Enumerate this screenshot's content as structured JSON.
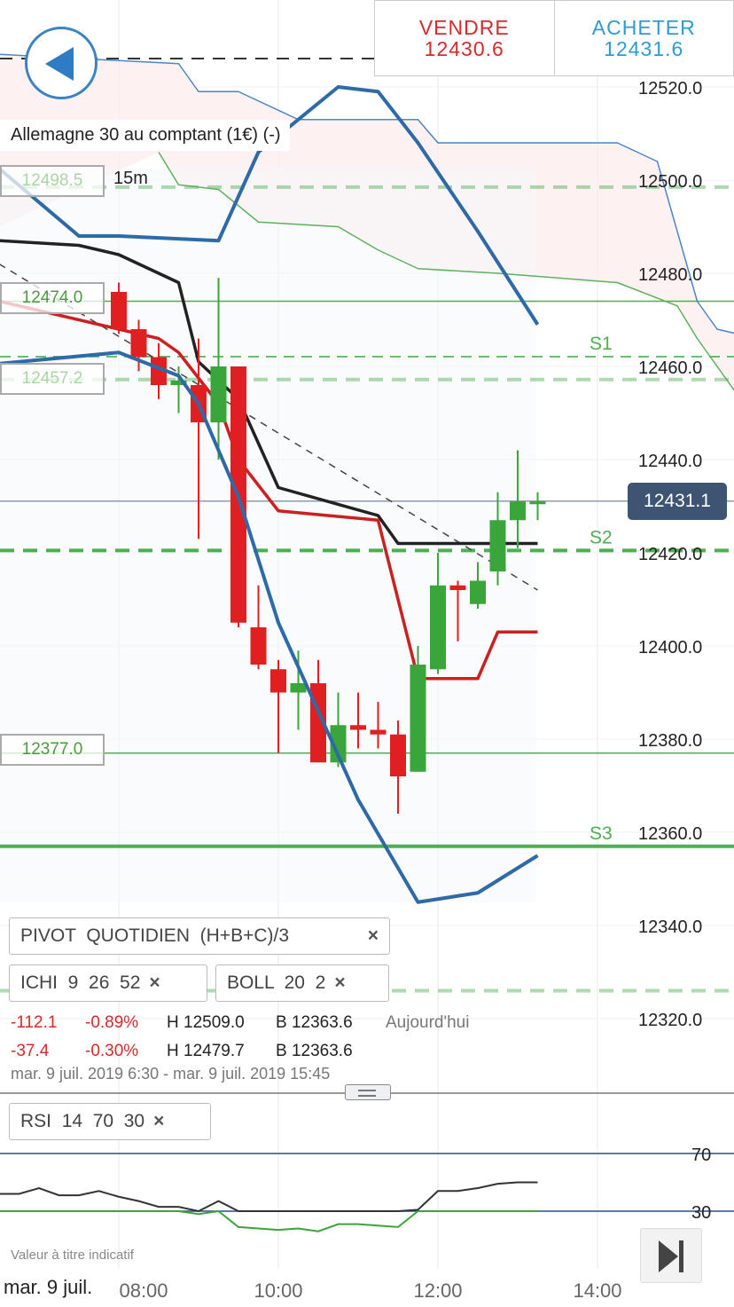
{
  "trade": {
    "sell_label": "VENDRE",
    "sell_price": "12430.6",
    "buy_label": "ACHETER",
    "buy_price": "12431.6"
  },
  "instrument": {
    "title": "Allemagne 30 au comptant (1€) (-)",
    "timeframe": "15m"
  },
  "level_labels": [
    "12498.5",
    "12474.0",
    "12457.2",
    "12377.0"
  ],
  "pivot_labels": {
    "s1": "S1",
    "s2": "S2",
    "s3": "S3"
  },
  "current_price": "12431.1",
  "indicators": {
    "pivot": {
      "name": "PIVOT",
      "params": "QUOTIDIEN  (H+B+C)/3"
    },
    "ichi": {
      "name": "ICHI",
      "params": "9  26  52"
    },
    "boll": {
      "name": "BOLL",
      "params": "20  2"
    },
    "rsi": {
      "name": "RSI",
      "params": "14  70  30"
    },
    "close_icon": "×"
  },
  "stats": {
    "today": {
      "change": "-112.1",
      "pct": "-0.89%",
      "high": "H 12509.0",
      "low": "B 12363.6",
      "label": "Aujourd'hui"
    },
    "view": {
      "change": "-37.4",
      "pct": "-0.30%",
      "high": "H 12479.7",
      "low": "B 12363.6"
    },
    "range": "mar. 9 juil. 2019 6:30 - mar. 9 juil. 2019 15:45"
  },
  "footer": {
    "note": "Valeur à titre indicatif",
    "date": "mar. 9 juil."
  },
  "colors": {
    "up": "#3aa53a",
    "down": "#e02020",
    "boll_outer": "#2e6aa8",
    "boll_mid": "#cc1f1f",
    "kijun": "#222222",
    "span_a": "#4a86c8",
    "span_b": "#5cb35c",
    "cloud": "#fdeeee",
    "pivot": "#4caf50",
    "rsi_line": "#333333",
    "rsi_oversold": "#3aa53a",
    "rsi_band": "#2a4f8a",
    "sell": "#d52b2b",
    "buy": "#2d9bd8"
  },
  "icons": {
    "back": "triangle-left-icon",
    "close": "x-icon",
    "forward": "skip-to-end-icon",
    "handle": "drag-handle-icon"
  },
  "chart_data": {
    "type": "candlestick",
    "ylim": [
      12310,
      12540
    ],
    "xlim": [
      "06:30",
      "15:45"
    ],
    "y_ticks": [
      "12320.0",
      "12340.0",
      "12360.0",
      "12380.0",
      "12400.0",
      "12420.0",
      "12440.0",
      "12460.0",
      "12480.0",
      "12500.0",
      "12520.0"
    ],
    "x_ticks": [
      "08:00",
      "10:00",
      "12:00",
      "14:00"
    ],
    "candles": [
      {
        "t": "08:00",
        "o": 12476,
        "h": 12478,
        "l": 12467,
        "c": 12468
      },
      {
        "t": "08:15",
        "o": 12468,
        "h": 12470,
        "l": 12459,
        "c": 12462
      },
      {
        "t": "08:30",
        "o": 12462,
        "h": 12465,
        "l": 12453,
        "c": 12456
      },
      {
        "t": "08:45",
        "o": 12456,
        "h": 12460,
        "l": 12450,
        "c": 12457
      },
      {
        "t": "09:00",
        "o": 12456,
        "h": 12466,
        "l": 12423,
        "c": 12448
      },
      {
        "t": "09:15",
        "o": 12448,
        "h": 12479,
        "l": 12440,
        "c": 12460
      },
      {
        "t": "09:30",
        "o": 12460,
        "h": 12460,
        "l": 12404,
        "c": 12405
      },
      {
        "t": "09:45",
        "o": 12404,
        "h": 12413,
        "l": 12395,
        "c": 12396
      },
      {
        "t": "10:00",
        "o": 12395,
        "h": 12397,
        "l": 12377,
        "c": 12390
      },
      {
        "t": "10:15",
        "o": 12390,
        "h": 12399,
        "l": 12382,
        "c": 12392
      },
      {
        "t": "10:30",
        "o": 12392,
        "h": 12397,
        "l": 12375,
        "c": 12375
      },
      {
        "t": "10:45",
        "o": 12375,
        "h": 12390,
        "l": 12374,
        "c": 12383
      },
      {
        "t": "11:00",
        "o": 12383,
        "h": 12390,
        "l": 12378,
        "c": 12382
      },
      {
        "t": "11:15",
        "o": 12382,
        "h": 12388,
        "l": 12378,
        "c": 12381
      },
      {
        "t": "11:30",
        "o": 12381,
        "h": 12384,
        "l": 12364,
        "c": 12372
      },
      {
        "t": "11:45",
        "o": 12373,
        "h": 12400,
        "l": 12373,
        "c": 12396
      },
      {
        "t": "12:00",
        "o": 12395,
        "h": 12420,
        "l": 12394,
        "c": 12413
      },
      {
        "t": "12:15",
        "o": 12413,
        "h": 12414,
        "l": 12401,
        "c": 12412
      },
      {
        "t": "12:30",
        "o": 12409,
        "h": 12418,
        "l": 12408,
        "c": 12414
      },
      {
        "t": "12:45",
        "o": 12416,
        "h": 12433,
        "l": 12413,
        "c": 12427
      },
      {
        "t": "13:00",
        "o": 12427,
        "h": 12442,
        "l": 12421,
        "c": 12431
      },
      {
        "t": "13:15",
        "o": 12431,
        "h": 12433,
        "l": 12427,
        "c": 12431
      }
    ],
    "lines": {
      "boll_upper": [
        [
          "06:30",
          12502.5
        ],
        [
          "07:30",
          12488
        ],
        [
          "08:00",
          12488
        ],
        [
          "09:15",
          12487
        ],
        [
          "09:45",
          12506
        ],
        [
          "10:45",
          12520
        ],
        [
          "11:15",
          12519
        ],
        [
          "11:45",
          12508
        ],
        [
          "12:30",
          12489
        ],
        [
          "13:15",
          12469
        ]
      ],
      "boll_mid": [
        [
          "06:30",
          12474
        ],
        [
          "08:00",
          12468
        ],
        [
          "08:30",
          12466
        ],
        [
          "08:45",
          12463
        ],
        [
          "09:15",
          12452
        ],
        [
          "09:30",
          12440
        ],
        [
          "10:00",
          12429
        ],
        [
          "11:15",
          12427
        ],
        [
          "11:45",
          12393
        ],
        [
          "12:30",
          12393
        ],
        [
          "12:45",
          12403
        ],
        [
          "13:15",
          12403
        ]
      ],
      "boll_lower": [
        [
          "06:30",
          12460.6
        ],
        [
          "08:00",
          12463
        ],
        [
          "08:45",
          12458
        ],
        [
          "09:00",
          12452
        ],
        [
          "09:30",
          12432
        ],
        [
          "10:00",
          12405
        ],
        [
          "11:00",
          12367
        ],
        [
          "11:45",
          12345
        ],
        [
          "12:30",
          12347
        ],
        [
          "13:15",
          12355
        ]
      ],
      "kijun": [
        [
          "06:30",
          12487
        ],
        [
          "07:30",
          12486
        ],
        [
          "08:00",
          12484
        ],
        [
          "08:45",
          12478
        ],
        [
          "09:00",
          12461
        ],
        [
          "09:30",
          12453
        ],
        [
          "10:00",
          12434
        ],
        [
          "11:15",
          12428
        ],
        [
          "11:30",
          12422
        ],
        [
          "13:15",
          12422
        ]
      ],
      "trend_dashed": [
        [
          "06:30",
          12482
        ],
        [
          "13:15",
          12412
        ]
      ],
      "span_a": [
        [
          "06:30",
          12527
        ],
        [
          "08:45",
          12525
        ],
        [
          "09:00",
          12519
        ],
        [
          "09:30",
          12519
        ],
        [
          "10:15",
          12513
        ],
        [
          "11:45",
          12513
        ],
        [
          "12:00",
          12508
        ],
        [
          "14:15",
          12508
        ],
        [
          "14:45",
          12504
        ],
        [
          "15:15",
          12474
        ],
        [
          "15:30",
          12468
        ],
        [
          "15:45",
          12467
        ]
      ],
      "span_b": [
        [
          "08:30",
          12506
        ],
        [
          "08:45",
          12499
        ],
        [
          "09:15",
          12498
        ],
        [
          "09:45",
          12491
        ],
        [
          "10:45",
          12490
        ],
        [
          "11:15",
          12485
        ],
        [
          "11:45",
          12481
        ],
        [
          "12:45",
          12480
        ],
        [
          "14:15",
          12478
        ],
        [
          "15:00",
          12473
        ],
        [
          "15:15",
          12466
        ],
        [
          "15:45",
          12454
        ]
      ]
    },
    "levels": [
      {
        "price": 12498.5,
        "style": "dashed-thick",
        "faded": true
      },
      {
        "price": 12474.0,
        "style": "solid"
      },
      {
        "price": 12462.1,
        "style": "dashed",
        "label": "S1"
      },
      {
        "price": 12457.2,
        "style": "dashed-thick",
        "faded": true
      },
      {
        "price": 12420.5,
        "style": "dashed-thick",
        "label": "S2"
      },
      {
        "price": 12377.0,
        "style": "solid"
      },
      {
        "price": 12357.0,
        "style": "solid-thick",
        "label": "S3"
      },
      {
        "price": 12326.0,
        "style": "dashed-thick",
        "faded": true
      }
    ],
    "current": 12431.1,
    "rsi": {
      "levels": [
        70,
        30
      ],
      "level_labels": [
        "70",
        "30"
      ],
      "values": [
        [
          "06:30",
          42
        ],
        [
          "06:45",
          42
        ],
        [
          "07:00",
          46
        ],
        [
          "07:15",
          41
        ],
        [
          "07:30",
          41
        ],
        [
          "07:45",
          44
        ],
        [
          "08:00",
          40
        ],
        [
          "08:15",
          37
        ],
        [
          "08:30",
          33
        ],
        [
          "08:45",
          33
        ],
        [
          "09:00",
          28
        ],
        [
          "09:15",
          37
        ],
        [
          "09:30",
          19
        ],
        [
          "09:45",
          18
        ],
        [
          "10:00",
          17
        ],
        [
          "10:15",
          18
        ],
        [
          "10:30",
          16
        ],
        [
          "10:45",
          21
        ],
        [
          "11:00",
          21
        ],
        [
          "11:15",
          20
        ],
        [
          "11:30",
          19
        ],
        [
          "11:45",
          31
        ],
        [
          "12:00",
          44
        ],
        [
          "12:15",
          44
        ],
        [
          "12:30",
          46
        ],
        [
          "12:45",
          49
        ],
        [
          "13:00",
          50
        ],
        [
          "13:15",
          50
        ]
      ]
    }
  }
}
